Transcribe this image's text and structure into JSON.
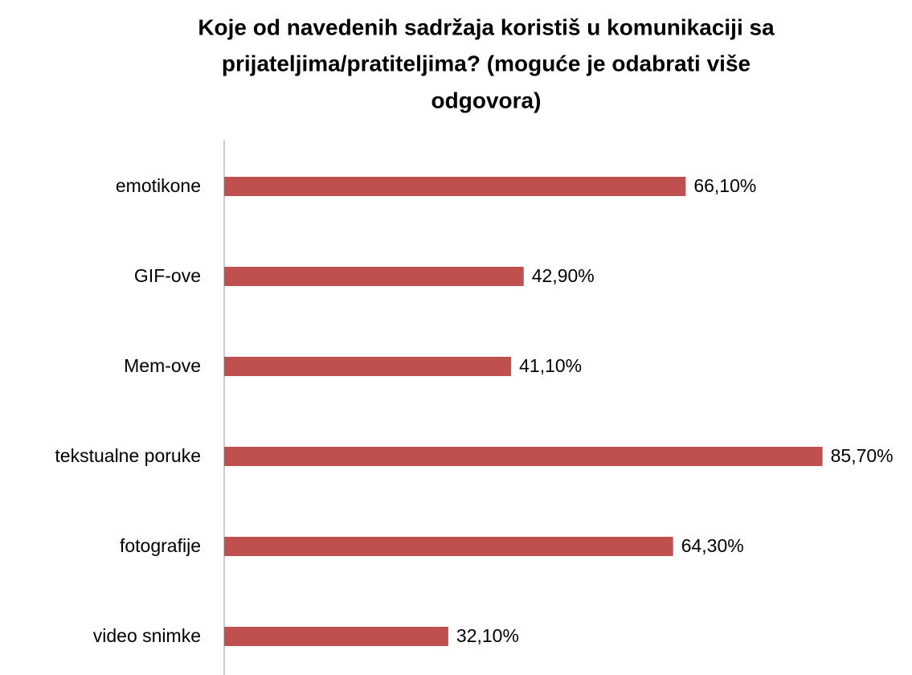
{
  "chart_data": {
    "type": "barh",
    "title": [
      "Koje od navedenih sadržaja koristiš u komunikaciji sa",
      "prijateljima/pratiteljima? (moguće je odabrati više",
      "odgovora)"
    ],
    "categories": [
      "emotikone",
      "GIF-ove",
      "Mem-ove",
      "tekstualne poruke",
      "fotografije",
      "video snimke"
    ],
    "values": [
      66.1,
      42.9,
      41.1,
      85.7,
      64.3,
      32.1
    ],
    "value_labels": [
      "66,10%",
      "42,90%",
      "41,10%",
      "85,70%",
      "64,30%",
      "32,10%"
    ],
    "color": "#c0504d",
    "xlim": [
      0,
      90
    ]
  }
}
